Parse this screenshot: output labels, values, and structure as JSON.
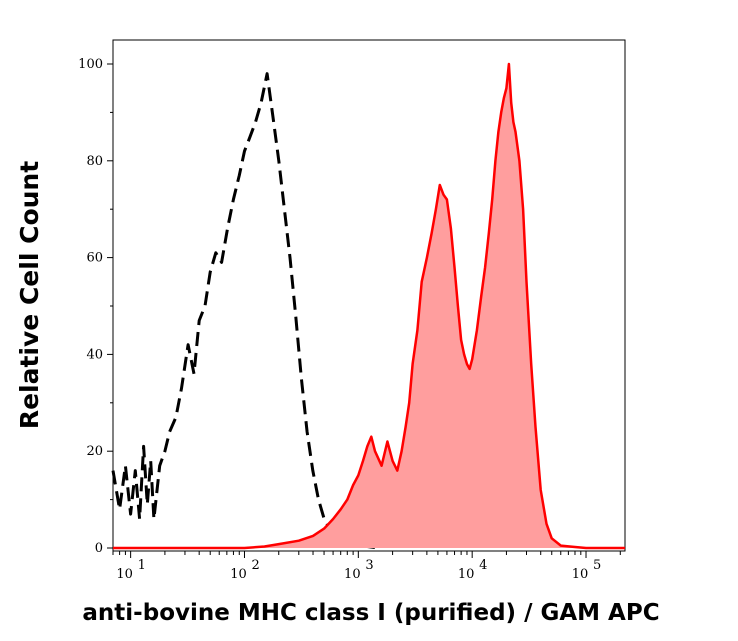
{
  "chart_data": {
    "type": "area",
    "xlabel": "anti-bovine MHC class I (purified) / GAM APC",
    "ylabel": "Relative Cell Count",
    "x_scale": "log",
    "xlim": [
      7,
      220000
    ],
    "ylim": [
      0,
      105
    ],
    "y_ticks": [
      0,
      20,
      40,
      60,
      80,
      100
    ],
    "x_ticks": [
      {
        "value": 10,
        "base": "10",
        "exp": "1"
      },
      {
        "value": 100,
        "base": "10",
        "exp": "2"
      },
      {
        "value": 1000,
        "base": "10",
        "exp": "3"
      },
      {
        "value": 10000,
        "base": "10",
        "exp": "4"
      },
      {
        "value": 100000,
        "base": "10",
        "exp": "5"
      }
    ],
    "grid": false,
    "legend": "none",
    "series": [
      {
        "style": "dashed",
        "color": "#000000",
        "fill": "none",
        "x": [
          7,
          8,
          9,
          10,
          11,
          12,
          13,
          14,
          15,
          16,
          18,
          20,
          22,
          25,
          28,
          32,
          36,
          40,
          45,
          50,
          56,
          63,
          71,
          80,
          90,
          100,
          112,
          125,
          140,
          158,
          178,
          200,
          224,
          251,
          282,
          316,
          355,
          398,
          447,
          501,
          562,
          631,
          708,
          794,
          891,
          1000,
          1200,
          1500
        ],
        "y": [
          16,
          8,
          17,
          7,
          16,
          6,
          21,
          9,
          18,
          6,
          17,
          20,
          24,
          27,
          33,
          42,
          36,
          47,
          50,
          57,
          61,
          59,
          66,
          72,
          77,
          82,
          85,
          88,
          92,
          98,
          89,
          80,
          70,
          60,
          48,
          35,
          24,
          16,
          10,
          6,
          4,
          3,
          2,
          1.5,
          1,
          0.5,
          0.3,
          0
        ]
      },
      {
        "style": "solid",
        "color": "#ff0000",
        "fill": "#ff9e9e",
        "x": [
          7,
          100,
          150,
          200,
          300,
          400,
          500,
          600,
          700,
          800,
          900,
          1000,
          1100,
          1200,
          1300,
          1400,
          1600,
          1800,
          2000,
          2200,
          2400,
          2600,
          2800,
          3000,
          3300,
          3600,
          4000,
          4400,
          4800,
          5200,
          5600,
          6000,
          6500,
          7000,
          7500,
          8000,
          8500,
          9000,
          9500,
          10000,
          11000,
          12000,
          13000,
          14000,
          15000,
          16000,
          17000,
          18000,
          19000,
          20000,
          21000,
          22000,
          23000,
          24000,
          26000,
          28000,
          30000,
          33000,
          36000,
          40000,
          45000,
          50000,
          60000,
          80000,
          100000,
          220000
        ],
        "y": [
          0,
          0,
          0.3,
          0.8,
          1.5,
          2.5,
          4,
          6,
          8,
          10,
          13,
          15,
          18,
          21,
          23,
          20,
          17,
          22,
          18,
          16,
          20,
          25,
          30,
          38,
          45,
          55,
          60,
          65,
          70,
          75,
          73,
          72,
          66,
          58,
          50,
          43,
          40,
          38,
          37,
          39,
          45,
          52,
          58,
          65,
          72,
          80,
          86,
          90,
          93,
          95,
          100,
          92,
          88,
          86,
          80,
          70,
          55,
          38,
          25,
          12,
          5,
          2,
          0.5,
          0.2,
          0,
          0
        ]
      }
    ]
  }
}
